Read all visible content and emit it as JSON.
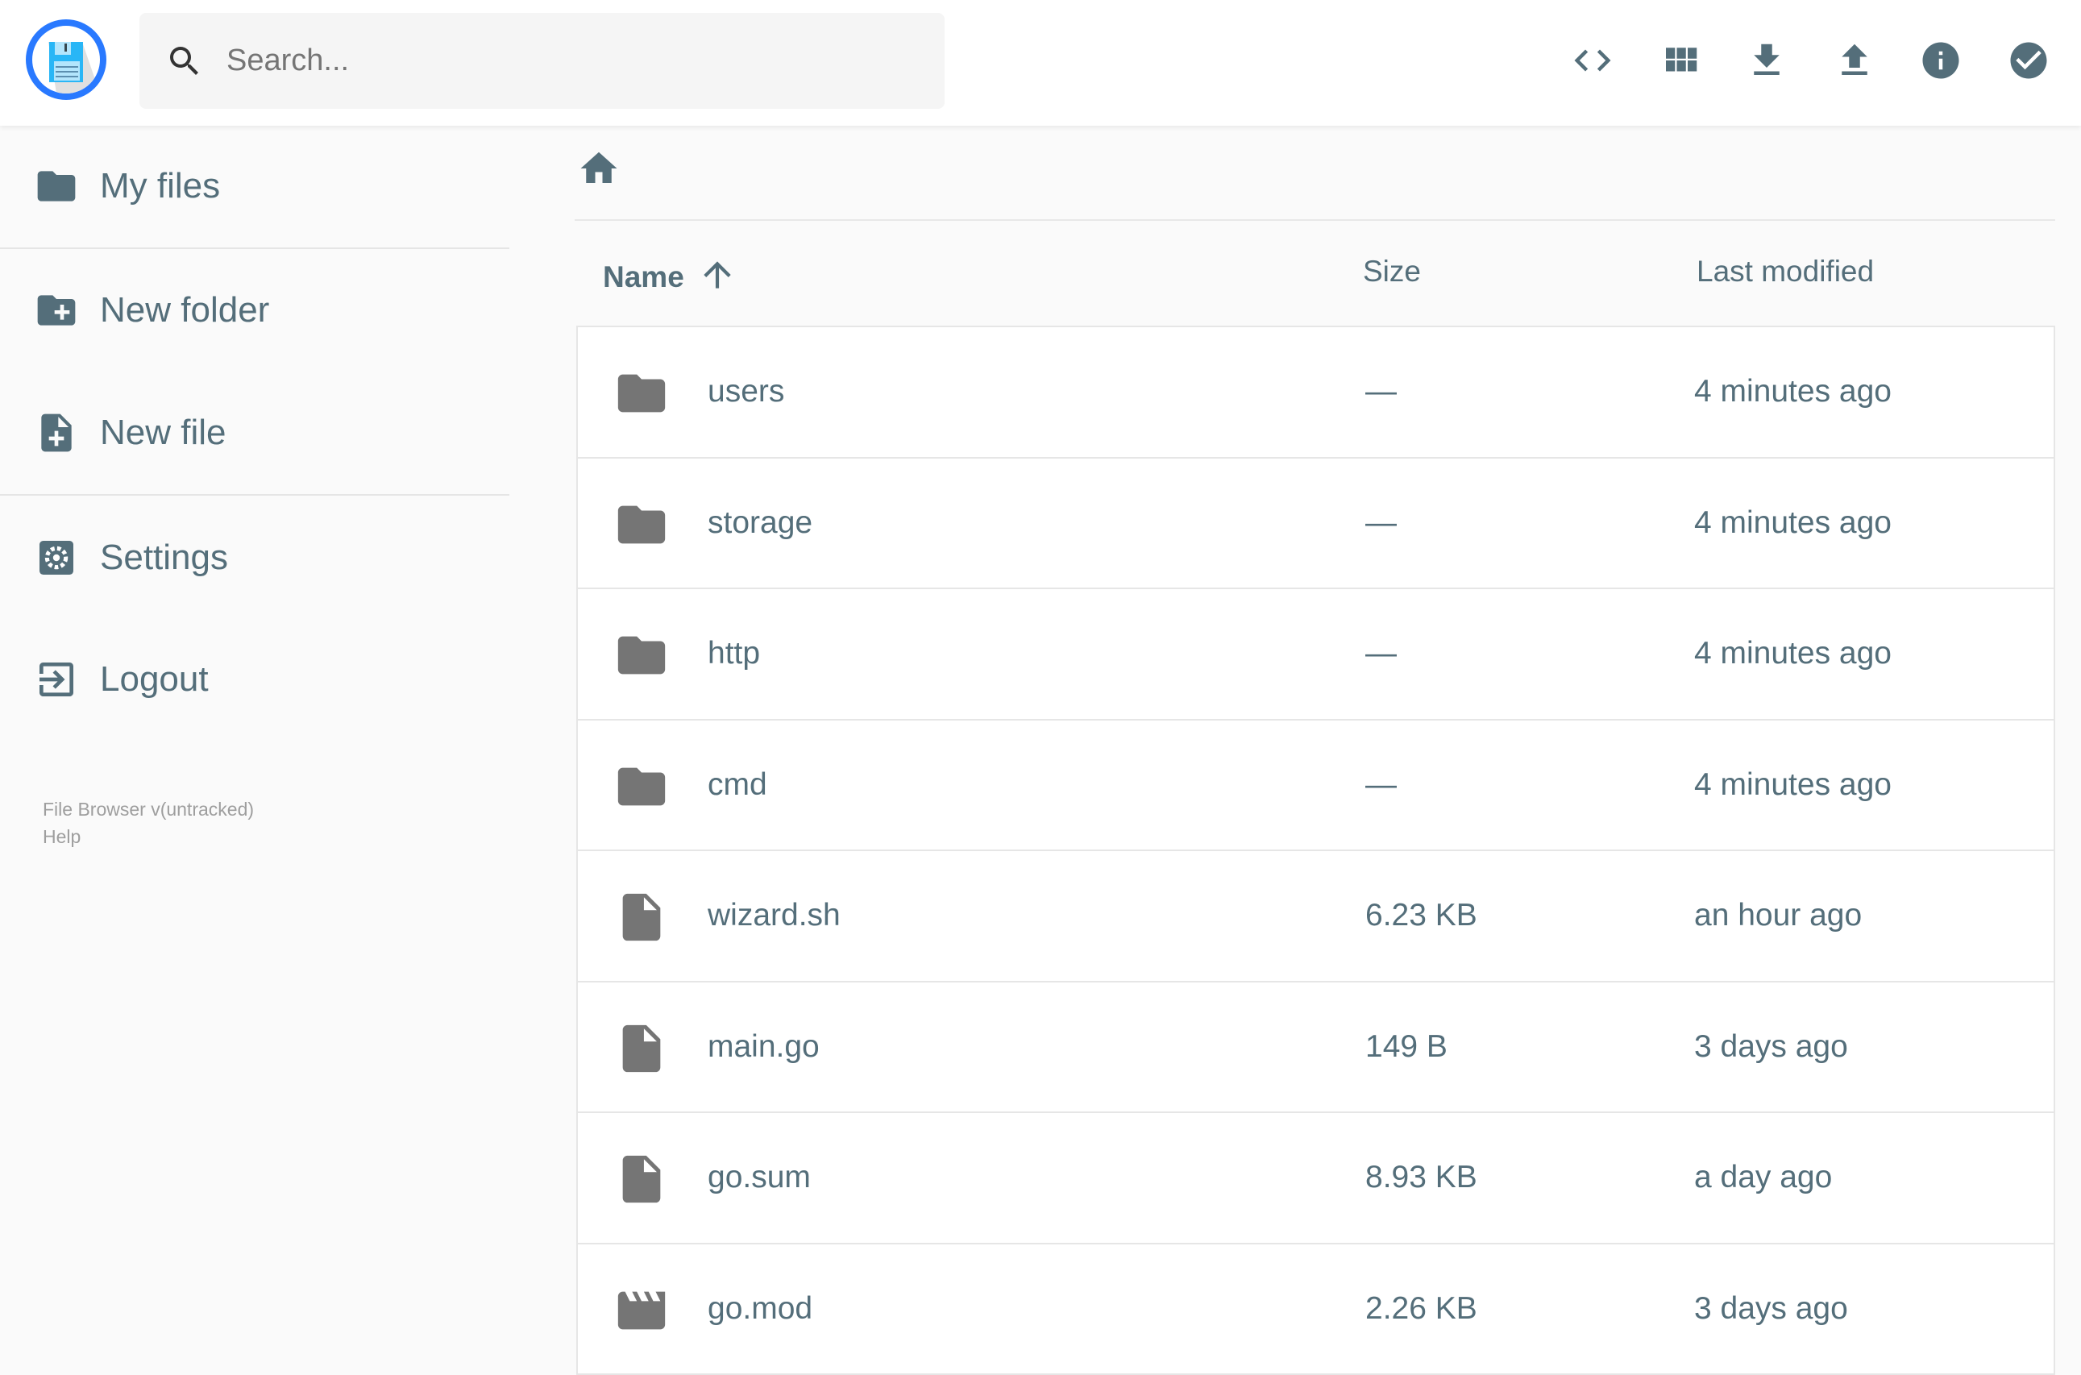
{
  "header": {
    "search_placeholder": "Search...",
    "actions": [
      {
        "name": "toggle-code-view",
        "icon": "code-icon"
      },
      {
        "name": "toggle-grid-view",
        "icon": "grid-icon"
      },
      {
        "name": "download",
        "icon": "download-icon"
      },
      {
        "name": "upload",
        "icon": "upload-icon"
      },
      {
        "name": "info",
        "icon": "info-icon"
      },
      {
        "name": "select",
        "icon": "check-circle-icon"
      }
    ]
  },
  "sidebar": {
    "items": [
      {
        "label": "My files",
        "icon": "folder-icon"
      },
      {
        "label": "New folder",
        "icon": "create-new-folder-icon"
      },
      {
        "label": "New file",
        "icon": "note-add-icon"
      },
      {
        "label": "Settings",
        "icon": "settings-icon"
      },
      {
        "label": "Logout",
        "icon": "exit-icon"
      }
    ],
    "footer": {
      "version": "File Browser v(untracked)",
      "help": "Help"
    }
  },
  "table": {
    "headers": {
      "name": "Name",
      "size": "Size",
      "modified": "Last modified"
    },
    "sort": "name-ascending",
    "rows": [
      {
        "name": "users",
        "size": "—",
        "modified": "4 minutes ago",
        "type": "folder"
      },
      {
        "name": "storage",
        "size": "—",
        "modified": "4 minutes ago",
        "type": "folder"
      },
      {
        "name": "http",
        "size": "—",
        "modified": "4 minutes ago",
        "type": "folder"
      },
      {
        "name": "cmd",
        "size": "—",
        "modified": "4 minutes ago",
        "type": "folder"
      },
      {
        "name": "wizard.sh",
        "size": "6.23 KB",
        "modified": "an hour ago",
        "type": "file"
      },
      {
        "name": "main.go",
        "size": "149 B",
        "modified": "3 days ago",
        "type": "file"
      },
      {
        "name": "go.sum",
        "size": "8.93 KB",
        "modified": "a day ago",
        "type": "file"
      },
      {
        "name": "go.mod",
        "size": "2.26 KB",
        "modified": "3 days ago",
        "type": "video"
      }
    ]
  },
  "colors": {
    "icon": "#546e7a",
    "accent": "#2979ff",
    "file_icon": "#757575"
  }
}
